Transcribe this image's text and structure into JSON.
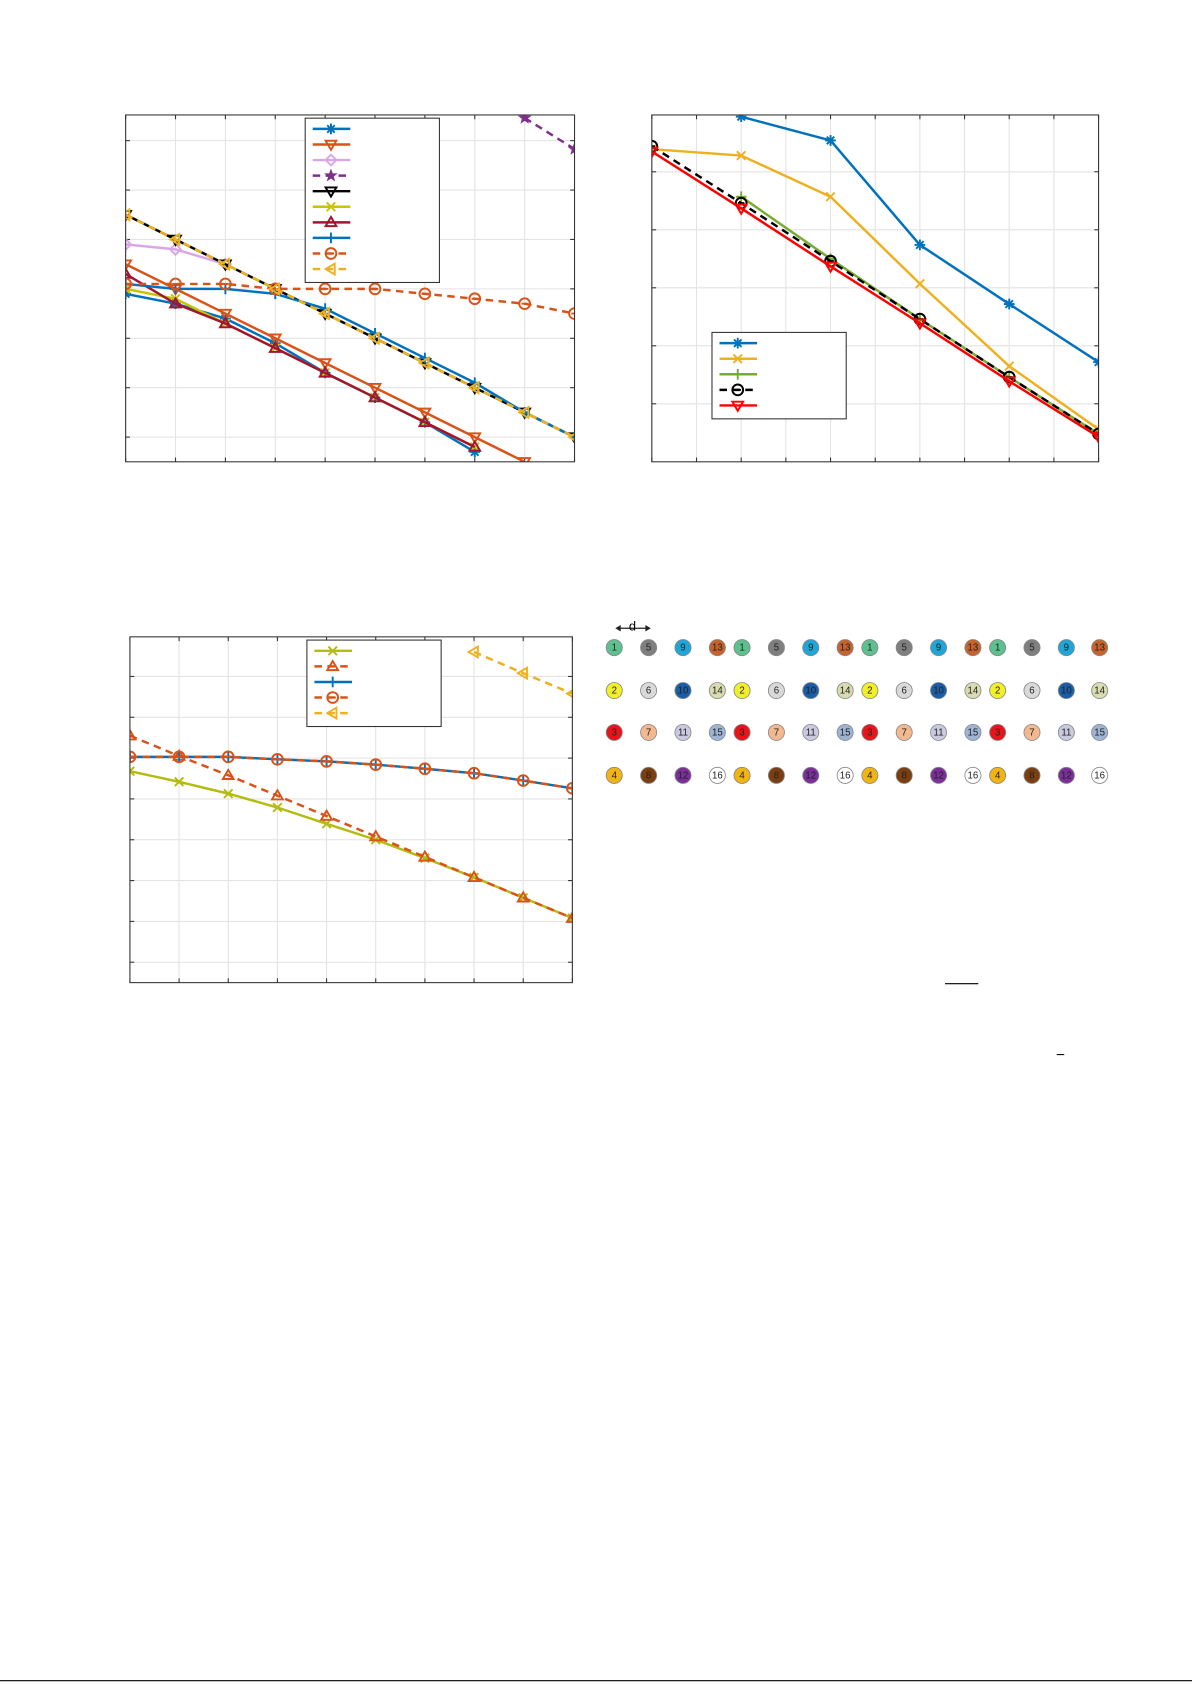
{
  "chart_data": [
    {
      "type": "line",
      "x": [
        1,
        2,
        3,
        4,
        5,
        6,
        7,
        8,
        9,
        10
      ],
      "xlim": [
        1,
        10
      ],
      "xticks": [
        1,
        2,
        3,
        4,
        5,
        6,
        7,
        8,
        9,
        10
      ],
      "ylim": [
        0,
        7.02
      ],
      "yticks": [
        0.5,
        1.5,
        2.5,
        3.5,
        4.5,
        5.5,
        6.5
      ],
      "grid": true,
      "legend": "top-center",
      "series": [
        {
          "color": "#0072bd",
          "marker": "asterisk",
          "dash": false,
          "values": [
            3.4,
            3.2,
            2.9,
            2.4,
            1.8,
            1.3,
            0.8,
            0.2,
            null,
            null
          ]
        },
        {
          "color": "#d95319",
          "marker": "tri-down",
          "dash": false,
          "values": [
            4.0,
            3.5,
            3.0,
            2.5,
            2.0,
            1.5,
            1.0,
            0.5,
            0.0,
            null
          ]
        },
        {
          "color": "#d9a6e8",
          "marker": "diamond",
          "dash": false,
          "values": [
            4.4,
            4.3,
            4.0,
            null,
            null,
            null,
            null,
            null,
            null,
            null
          ]
        },
        {
          "color": "#7e2f8e",
          "marker": "star",
          "dash": true,
          "values": [
            null,
            null,
            null,
            null,
            null,
            null,
            null,
            null,
            6.96,
            6.33
          ]
        },
        {
          "color": "#000000",
          "marker": "tri-down",
          "dash": false,
          "values": [
            5.0,
            4.5,
            4.0,
            3.5,
            3.0,
            2.5,
            2.0,
            1.5,
            1.0,
            0.5
          ]
        },
        {
          "color": "#c8c400",
          "marker": "x",
          "dash": false,
          "values": [
            3.5,
            3.3,
            2.8,
            2.3,
            1.8,
            1.3,
            0.8,
            0.3,
            null,
            null
          ]
        },
        {
          "color": "#a2142f",
          "marker": "tri-up",
          "dash": false,
          "values": [
            3.8,
            3.2,
            2.8,
            2.3,
            1.8,
            1.3,
            0.8,
            0.3,
            null,
            null
          ]
        },
        {
          "color": "#0072bd",
          "marker": "plus",
          "dash": false,
          "values": [
            3.6,
            3.5,
            3.5,
            3.4,
            3.1,
            2.6,
            2.1,
            1.6,
            1.0,
            0.5
          ]
        },
        {
          "color": "#d95319",
          "marker": "circle-minus",
          "dash": true,
          "values": [
            3.6,
            3.6,
            3.6,
            3.5,
            3.5,
            3.5,
            3.4,
            3.3,
            3.2,
            3.0
          ]
        },
        {
          "color": "#edb120",
          "marker": "tri-left",
          "dash": true,
          "values": [
            5.0,
            4.5,
            4.0,
            3.5,
            3.0,
            2.5,
            2.0,
            1.5,
            1.0,
            0.5
          ]
        }
      ]
    },
    {
      "type": "line",
      "x": [
        0,
        2,
        4,
        6,
        8,
        10
      ],
      "xlim": [
        0,
        10
      ],
      "xticks": [
        0,
        1,
        2,
        3,
        4,
        5,
        6,
        7,
        8,
        9,
        10
      ],
      "ylim": [
        0,
        5.98
      ],
      "yticks": [
        1,
        2,
        3,
        4,
        5
      ],
      "grid": true,
      "legend": "bottom-left",
      "series": [
        {
          "color": "#0072bd",
          "marker": "asterisk",
          "dash": false,
          "values": [
            null,
            5.95,
            5.54,
            3.74,
            2.72,
            1.72
          ]
        },
        {
          "color": "#edb120",
          "marker": "x",
          "dash": false,
          "values": [
            5.39,
            5.28,
            4.57,
            3.07,
            1.65,
            0.56
          ]
        },
        {
          "color": "#77ac30",
          "marker": "plus",
          "dash": false,
          "values": [
            null,
            4.57,
            3.5,
            2.46,
            1.46,
            0.48
          ]
        },
        {
          "color": "#000000",
          "marker": "circle-minus",
          "dash": true,
          "values": [
            5.44,
            4.46,
            3.46,
            2.46,
            1.46,
            0.48
          ]
        },
        {
          "color": "#ff0000",
          "marker": "tri-down",
          "dash": false,
          "values": [
            5.35,
            4.37,
            3.37,
            2.39,
            1.39,
            0.43
          ]
        }
      ]
    },
    {
      "type": "line",
      "x": [
        1,
        2,
        3,
        4,
        5,
        6,
        7,
        8,
        9,
        10
      ],
      "xlim": [
        1,
        10
      ],
      "xticks": [
        1,
        2,
        3,
        4,
        5,
        6,
        7,
        8,
        9,
        10
      ],
      "ylim": [
        0,
        8.47
      ],
      "yticks": [
        0.5,
        1.5,
        2.5,
        3.5,
        4.5,
        5.5,
        6.5,
        7.5
      ],
      "grid": true,
      "legend": "top-center",
      "series": [
        {
          "color": "#b4bc10",
          "marker": "x",
          "dash": false,
          "values": [
            5.18,
            4.92,
            4.63,
            4.29,
            3.89,
            3.5,
            3.05,
            2.58,
            2.08,
            1.58
          ]
        },
        {
          "color": "#d95319",
          "marker": "tri-up",
          "dash": true,
          "values": [
            6.05,
            5.55,
            5.08,
            4.58,
            4.08,
            3.58,
            3.08,
            2.58,
            2.08,
            1.58
          ]
        },
        {
          "color": "#0072bd",
          "marker": "plus",
          "dash": false,
          "values": [
            5.53,
            5.53,
            5.53,
            5.47,
            5.42,
            5.34,
            5.24,
            5.13,
            4.95,
            4.76
          ]
        },
        {
          "color": "#d95319",
          "marker": "circle-minus",
          "dash": true,
          "values": [
            5.53,
            5.53,
            5.53,
            5.47,
            5.42,
            5.34,
            5.24,
            5.13,
            4.95,
            4.76
          ]
        },
        {
          "color": "#edb120",
          "marker": "tri-left",
          "dash": true,
          "values": [
            null,
            null,
            null,
            null,
            null,
            null,
            null,
            8.1,
            7.58,
            7.08
          ]
        }
      ]
    }
  ],
  "diagram": {
    "spacing_label": "d",
    "colors": {
      "1": "#5fc08f",
      "2": "#f0ef2a",
      "3": "#e8141c",
      "4": "#f2b410",
      "5": "#7f7f7f",
      "6": "#d9d9d9",
      "7": "#f2b890",
      "8": "#7a3e10",
      "9": "#1ea6d8",
      "10": "#1a5ea6",
      "11": "#c9c9e0",
      "12": "#7a2f99",
      "13": "#c7632a",
      "14": "#d8dcb0",
      "15": "#9db4d4",
      "16": "#ffffff"
    },
    "rows": [
      {
        "labels": [
          1,
          5,
          9,
          13,
          1,
          5,
          9,
          13,
          1,
          5,
          9,
          13,
          1,
          5,
          9,
          13
        ]
      },
      {
        "labels": [
          2,
          6,
          10,
          14,
          2,
          6,
          10,
          14,
          2,
          6,
          10,
          14,
          2,
          6,
          10,
          14
        ]
      },
      {
        "labels": [
          3,
          7,
          11,
          15,
          3,
          7,
          11,
          15,
          3,
          7,
          11,
          15,
          3,
          7,
          11,
          15
        ]
      },
      {
        "labels": [
          4,
          8,
          12,
          16,
          4,
          8,
          12,
          16,
          4,
          8,
          12,
          16,
          4,
          8,
          12,
          16
        ]
      }
    ]
  }
}
